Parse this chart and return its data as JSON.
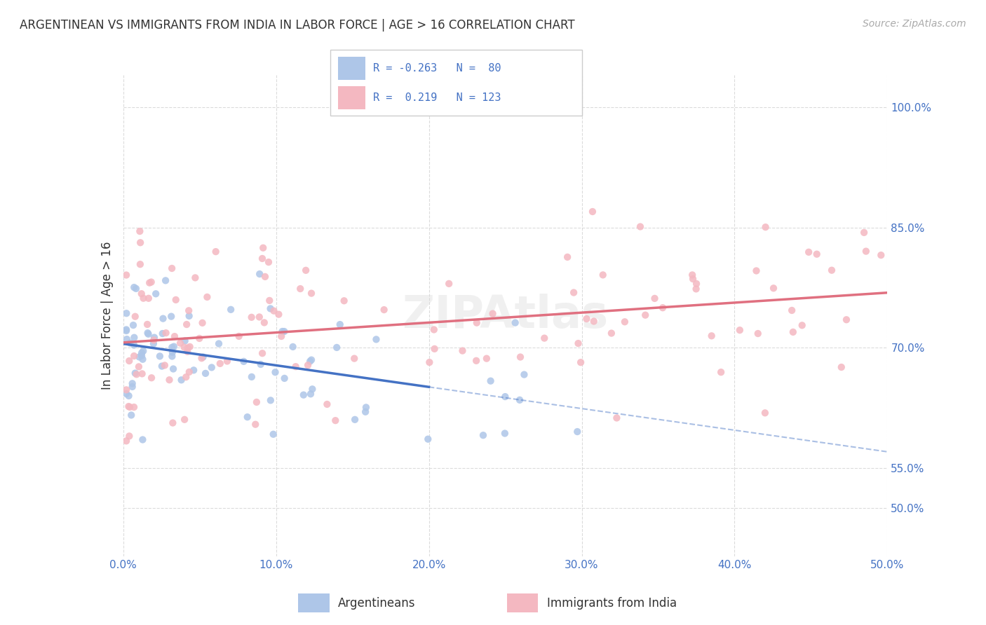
{
  "title": "ARGENTINEAN VS IMMIGRANTS FROM INDIA IN LABOR FORCE | AGE > 16 CORRELATION CHART",
  "source": "Source: ZipAtlas.com",
  "ylabel": "In Labor Force | Age > 16",
  "xlim": [
    0.0,
    0.5
  ],
  "ylim": [
    0.44,
    1.04
  ],
  "background_color": "#ffffff",
  "grid_color": "#cccccc",
  "argentina_R": -0.263,
  "argentina_N": 80,
  "india_R": 0.219,
  "india_N": 123,
  "argentina_color": "#aec6e8",
  "india_color": "#f4b8c1",
  "argentina_line_color": "#4472c4",
  "india_line_color": "#e07080"
}
